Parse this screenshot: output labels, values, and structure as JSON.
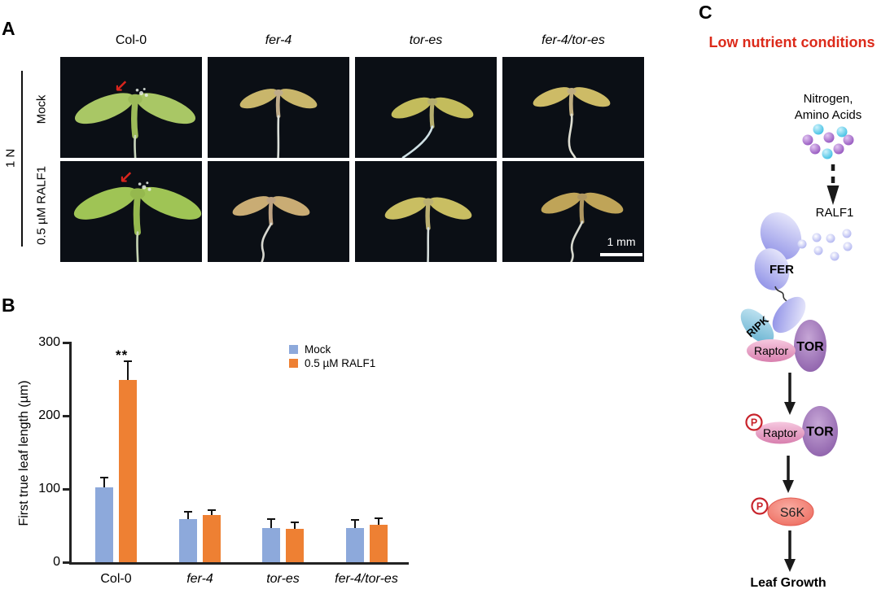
{
  "panels": {
    "a_label": "A",
    "b_label": "B",
    "c_label": "C"
  },
  "panel_a": {
    "columns": [
      {
        "label": "Col-0",
        "italic": false
      },
      {
        "label": "fer-4",
        "italic": true
      },
      {
        "label": "tor-es",
        "italic": true
      },
      {
        "label": "fer-4/tor-es",
        "italic": true
      }
    ],
    "rows": [
      {
        "label": "Mock"
      },
      {
        "label": "0.5 µM RALF1"
      }
    ],
    "bracket_label": "1 N",
    "scale_bar_label": "1 mm",
    "arrow_color": "#D9251D",
    "cells": [
      {
        "genotype": "Col-0",
        "treatment": "Mock",
        "leaf": "#A9C765",
        "stem": "#9CBB59",
        "root": "#C9D6BC",
        "arrow": true
      },
      {
        "genotype": "fer-4",
        "treatment": "Mock",
        "leaf": "#C9B66B",
        "stem": "#BFAC89",
        "root": "#DADED8",
        "arrow": false
      },
      {
        "genotype": "tor-es",
        "treatment": "Mock",
        "leaf": "#C3BC5C",
        "stem": "#B5AE6E",
        "root": "#CFE0E4",
        "arrow": false
      },
      {
        "genotype": "fer-4/tor-es",
        "treatment": "Mock",
        "leaf": "#CDBB66",
        "stem": "#C0AE80",
        "root": "#DEDED2",
        "arrow": false
      },
      {
        "genotype": "Col-0",
        "treatment": "0.5 µM RALF1",
        "leaf": "#9FC455",
        "stem": "#95B84E",
        "root": "#C6D4B4",
        "arrow": true
      },
      {
        "genotype": "fer-4",
        "treatment": "0.5 µM RALF1",
        "leaf": "#C9AC74",
        "stem": "#BDA282",
        "root": "#D8D8D0",
        "arrow": false
      },
      {
        "genotype": "tor-es",
        "treatment": "0.5 µM RALF1",
        "leaf": "#C9BE62",
        "stem": "#BBB070",
        "root": "#D4DCDA",
        "arrow": false
      },
      {
        "genotype": "fer-4/tor-es",
        "treatment": "0.5 µM RALF1",
        "leaf": "#BFA458",
        "stem": "#AE9660",
        "root": "#D6D8CE",
        "arrow": false
      }
    ]
  },
  "chart_data": {
    "type": "bar",
    "title": "",
    "ylabel": "First true leaf length (µm)",
    "xlabel": "",
    "ylim": [
      0,
      300
    ],
    "yticks": [
      0,
      100,
      200,
      300
    ],
    "grid": false,
    "legend_position": "top-right",
    "categories": [
      {
        "label": "Col-0",
        "italic": false
      },
      {
        "label": "fer-4",
        "italic": true
      },
      {
        "label": "tor-es",
        "italic": true
      },
      {
        "label": "fer-4/tor-es",
        "italic": true
      }
    ],
    "series": [
      {
        "name": "Mock",
        "color": "#8DA9DB",
        "values": [
          102,
          59,
          47,
          47
        ],
        "errors": [
          14,
          10,
          12,
          11
        ]
      },
      {
        "name": "0.5 µM RALF1",
        "color": "#EE8033",
        "values": [
          249,
          64,
          46,
          51
        ],
        "errors": [
          26,
          7,
          8,
          9
        ]
      }
    ],
    "significance": [
      {
        "category": "Col-0",
        "series_index": 1,
        "label": "**"
      }
    ]
  },
  "panel_c": {
    "title": "Low nutrient conditions",
    "title_color": "#DC2A1A",
    "nutrients_line1": "Nitrogen,",
    "nutrients_line2": "Amino Acids",
    "ralf1_label": "RALF1",
    "fer_label": "FER",
    "ripk_label": "RIPK",
    "raptor_label": "Raptor",
    "tor_label": "TOR",
    "phospho_label": "P",
    "s6k_label": "S6K",
    "output_label": "Leaf Growth",
    "colors": {
      "nitrogen_ball_cyan": "#3FC0E4",
      "nitrogen_ball_purple": "#9455BE",
      "ralf1_peptide": "#AEB2F0",
      "fer": "#8486E4",
      "ripk": "#5FAECE",
      "raptor": "#D87FAE",
      "tor": "#8A5CA8",
      "s6k": "#ED6B5E",
      "phospho": "#C8242C",
      "arrow": "#1A1A1A"
    }
  }
}
